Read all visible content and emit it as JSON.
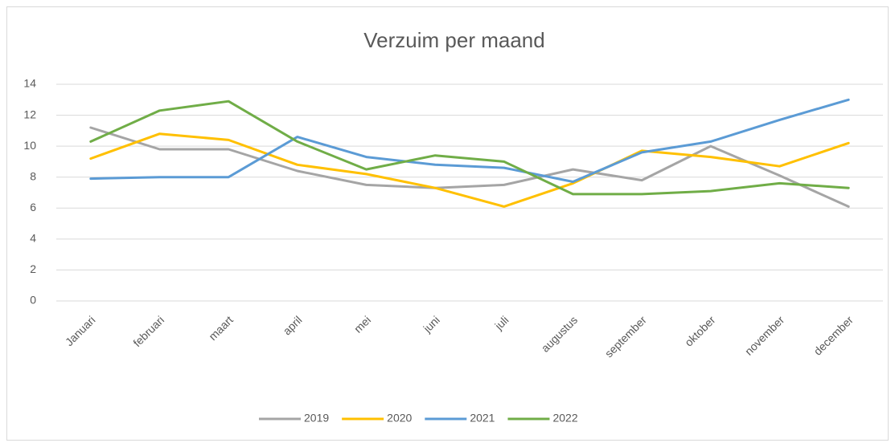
{
  "chart_data": {
    "type": "line",
    "title": "Verzuim per maand",
    "categories": [
      "Januari",
      "februari",
      "maart",
      "april",
      "mei",
      "juni",
      "juli",
      "augustus",
      "september",
      "oktober",
      "november",
      "december"
    ],
    "series": [
      {
        "name": "2019",
        "color": "#a5a5a5",
        "values": [
          11.2,
          9.8,
          9.8,
          8.4,
          7.5,
          7.3,
          7.5,
          8.5,
          7.8,
          10.0,
          8.1,
          6.1
        ]
      },
      {
        "name": "2020",
        "color": "#ffc000",
        "values": [
          9.2,
          10.8,
          10.4,
          8.8,
          8.2,
          7.3,
          6.1,
          7.6,
          9.7,
          9.3,
          8.7,
          10.2
        ]
      },
      {
        "name": "2021",
        "color": "#5b9bd5",
        "values": [
          7.9,
          8.0,
          8.0,
          10.6,
          9.3,
          8.8,
          8.6,
          7.7,
          9.6,
          10.3,
          11.7,
          13.0
        ]
      },
      {
        "name": "2022",
        "color": "#70ad47",
        "values": [
          10.3,
          12.3,
          12.9,
          10.3,
          8.5,
          9.4,
          9.0,
          6.9,
          6.9,
          7.1,
          7.6,
          7.3
        ]
      }
    ],
    "ylim": [
      0,
      14
    ],
    "yticks": [
      0,
      2,
      4,
      6,
      8,
      10,
      12,
      14
    ],
    "grid": true,
    "legend": "bottom"
  }
}
